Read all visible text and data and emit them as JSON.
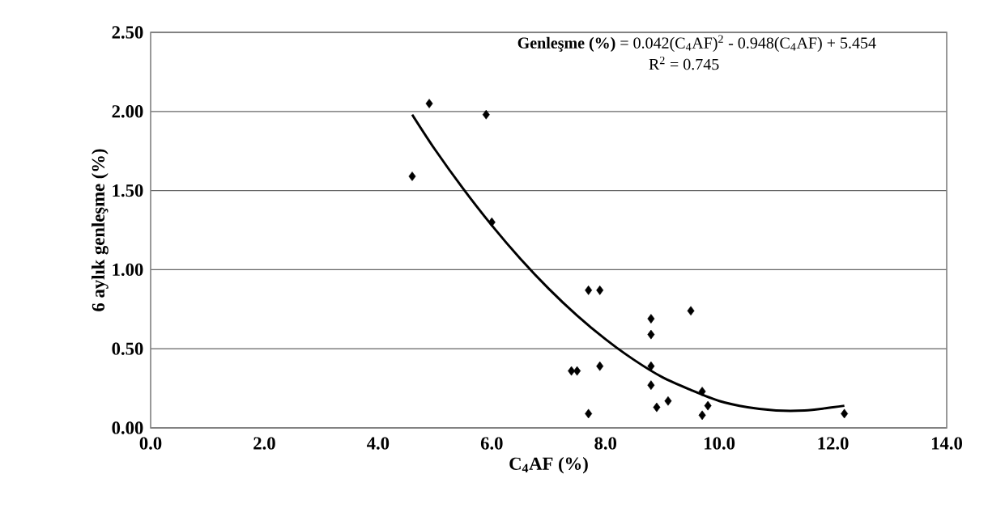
{
  "chart_data": {
    "type": "scatter",
    "xlabel": "C$_{4}$AF (%)",
    "ylabel": "6 aylık genleşme (%)",
    "annotations": [
      "**Genleşme (%)** = 0.042(C$_{4}$AF)$^{2}$ - 0.948(C$_{4}$AF) + 5.454",
      "R$^{2}$ = 0.745"
    ],
    "xlim": [
      0,
      14
    ],
    "ylim": [
      0,
      2.5
    ],
    "xticks": [
      {
        "value": 0,
        "label": "0.0"
      },
      {
        "value": 2,
        "label": "2.0"
      },
      {
        "value": 4,
        "label": "4.0"
      },
      {
        "value": 6,
        "label": "6.0"
      },
      {
        "value": 8,
        "label": "8.0"
      },
      {
        "value": 10,
        "label": "10.0"
      },
      {
        "value": 12,
        "label": "12.0"
      },
      {
        "value": 14,
        "label": "14.0"
      }
    ],
    "yticks": [
      {
        "value": 0,
        "label": "0.00"
      },
      {
        "value": 0.5,
        "label": "0.50"
      },
      {
        "value": 1,
        "label": "1.00"
      },
      {
        "value": 1.5,
        "label": "1.50"
      },
      {
        "value": 2,
        "label": "2.00"
      },
      {
        "value": 2.5,
        "label": "2.50"
      }
    ],
    "grid": "y",
    "marker": "diamond",
    "series": [
      {
        "color": "#000000",
        "x": [
          4.6,
          4.9,
          5.9,
          6.0,
          7.4,
          7.5,
          7.7,
          7.7,
          7.9,
          7.9,
          8.8,
          8.8,
          8.8,
          8.8,
          8.9,
          9.1,
          9.5,
          9.7,
          9.7,
          9.8,
          12.2
        ],
        "values": [
          1.59,
          2.05,
          1.98,
          1.3,
          0.36,
          0.36,
          0.87,
          0.09,
          0.87,
          0.39,
          0.69,
          0.59,
          0.39,
          0.27,
          0.13,
          0.17,
          0.74,
          0.23,
          0.08,
          0.14,
          0.09
        ]
      },
      {
        "type": "line",
        "marker": "none",
        "color": "#000000",
        "x": [
          4.6,
          5,
          5.5,
          6,
          6.5,
          7,
          7.5,
          8,
          8.5,
          9,
          9.5,
          10,
          10.5,
          11,
          11.5,
          12,
          12.2
        ],
        "values": [
          1.98,
          1.76,
          1.51,
          1.28,
          1.07,
          0.88,
          0.71,
          0.56,
          0.43,
          0.32,
          0.24,
          0.17,
          0.13,
          0.11,
          0.11,
          0.13,
          0.14
        ]
      }
    ]
  }
}
